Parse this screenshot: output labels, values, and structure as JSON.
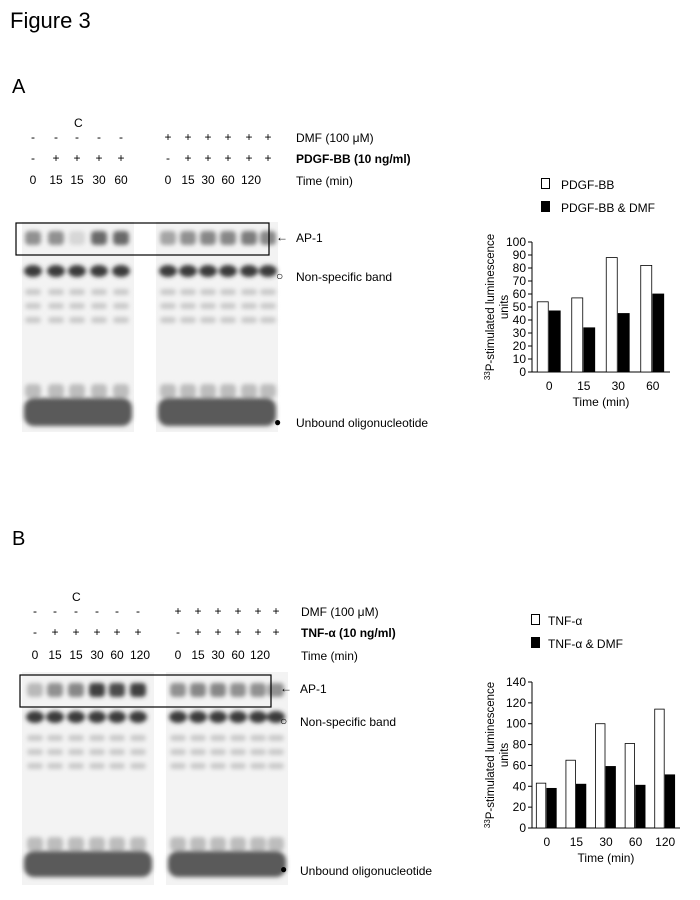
{
  "figure_title": "Figure 3",
  "panels": [
    {
      "letter": "A",
      "control_label": "C",
      "row_labels": {
        "dmf": "DMF (100 μM)",
        "stimulus": "PDGF-BB (10 ng/ml)",
        "time": "Time (min)"
      },
      "dmf_marks": [
        "-",
        "-",
        "-",
        "-",
        "-",
        "+",
        "+",
        "+",
        "+",
        "+",
        "+"
      ],
      "stim_marks": [
        "-",
        "+",
        "+",
        "+",
        "+",
        "-",
        "+",
        "+",
        "+",
        "+",
        "+"
      ],
      "time_marks": [
        "0",
        "15",
        "15",
        "30",
        "60",
        "0",
        "15",
        "30",
        "60",
        "120"
      ],
      "band_labels": {
        "ap1": "AP-1",
        "nonspecific": "Non-specific band",
        "unbound": "Unbound oligonucleotide"
      },
      "ap1_intensity": [
        0.55,
        0.55,
        0.2,
        0.75,
        0.75,
        0.45,
        0.55,
        0.6,
        0.6,
        0.65,
        0.6
      ],
      "lane_count": 11
    },
    {
      "letter": "B",
      "control_label": "C",
      "row_labels": {
        "dmf": "DMF (100 μM)",
        "stimulus": "TNF-α (10 ng/ml)",
        "time": "Time (min)"
      },
      "dmf_marks": [
        "-",
        "-",
        "-",
        "-",
        "-",
        "-",
        "+",
        "+",
        "+",
        "+",
        "+",
        "+"
      ],
      "stim_marks": [
        "-",
        "+",
        "+",
        "+",
        "+",
        "+",
        "-",
        "+",
        "+",
        "+",
        "+",
        "+"
      ],
      "time_marks": [
        "0",
        "15",
        "15",
        "30",
        "60",
        "120",
        "0",
        "15",
        "30",
        "60",
        "120"
      ],
      "band_labels": {
        "ap1": "AP-1",
        "nonspecific": "Non-specific band",
        "unbound": "Unbound oligonucleotide"
      },
      "ap1_intensity": [
        0.35,
        0.55,
        0.6,
        0.95,
        0.9,
        0.95,
        0.55,
        0.6,
        0.6,
        0.55,
        0.55,
        0.55
      ],
      "lane_count": 12
    }
  ],
  "chart_data": [
    {
      "type": "bar",
      "categories": [
        "0",
        "15",
        "30",
        "60"
      ],
      "series": [
        {
          "name": "PDGF-BB",
          "values": [
            54,
            57,
            88,
            82
          ],
          "color": "#ffffff"
        },
        {
          "name": "PDGF-BB & DMF",
          "values": [
            47,
            34,
            45,
            60
          ],
          "color": "#000000"
        }
      ],
      "xlabel": "Time (min)",
      "ylabel": "33P-stimulated luminescence units",
      "ylim": [
        0,
        100
      ],
      "yticks": [
        0,
        10,
        20,
        30,
        40,
        50,
        60,
        70,
        80,
        90,
        100
      ],
      "legend": "top"
    },
    {
      "type": "bar",
      "categories": [
        "0",
        "15",
        "30",
        "60",
        "120"
      ],
      "series": [
        {
          "name": "TNF-α",
          "values": [
            43,
            65,
            100,
            81,
            114
          ],
          "color": "#ffffff"
        },
        {
          "name": "TNF-α & DMF",
          "values": [
            38,
            42,
            59,
            41,
            51
          ],
          "color": "#000000"
        }
      ],
      "xlabel": "Time (min)",
      "ylabel": "33P-stimulated luminescence units",
      "ylim": [
        0,
        140
      ],
      "yticks": [
        0,
        20,
        40,
        60,
        80,
        100,
        120,
        140
      ],
      "legend": "top"
    }
  ]
}
